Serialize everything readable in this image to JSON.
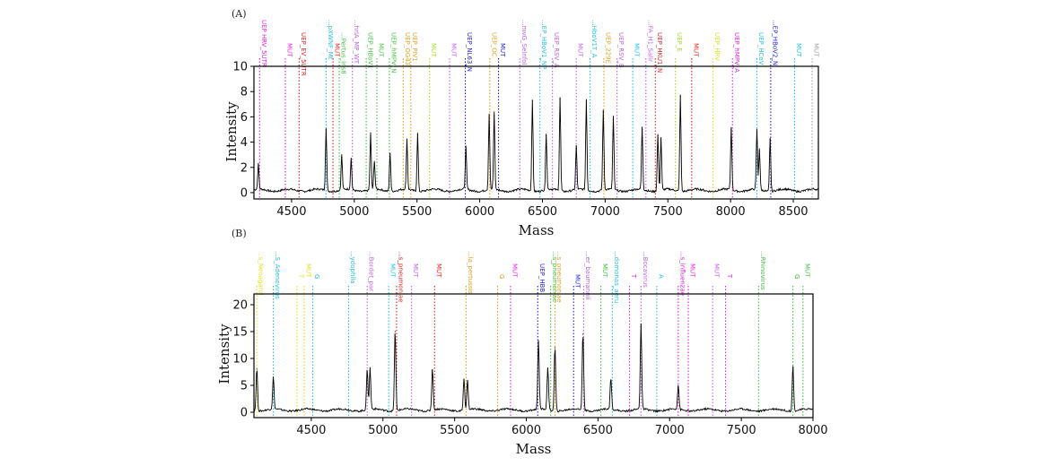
{
  "chart_data": [
    {
      "type": "line",
      "panel_tag": "(A)",
      "xlabel": "Mass",
      "ylabel": "Intensity",
      "xlim": [
        4200,
        8700
      ],
      "ylim": [
        -0.5,
        10
      ],
      "xticks": [
        4500,
        5000,
        5500,
        6000,
        6500,
        7000,
        7500,
        8000,
        8500
      ],
      "yticks": [
        0,
        2,
        4,
        6,
        8,
        10
      ],
      "line_color": "#000000",
      "peaks": [
        {
          "mass": 4235,
          "intensity": 2.0
        },
        {
          "mass": 4775,
          "intensity": 5.0
        },
        {
          "mass": 4900,
          "intensity": 2.8
        },
        {
          "mass": 4975,
          "intensity": 2.5
        },
        {
          "mass": 5130,
          "intensity": 4.5
        },
        {
          "mass": 5160,
          "intensity": 2.3
        },
        {
          "mass": 5285,
          "intensity": 3.1
        },
        {
          "mass": 5420,
          "intensity": 4.0
        },
        {
          "mass": 5505,
          "intensity": 4.6
        },
        {
          "mass": 5890,
          "intensity": 3.4
        },
        {
          "mass": 6075,
          "intensity": 6.0
        },
        {
          "mass": 6115,
          "intensity": 6.1
        },
        {
          "mass": 6420,
          "intensity": 7.3
        },
        {
          "mass": 6530,
          "intensity": 4.5
        },
        {
          "mass": 6640,
          "intensity": 7.4
        },
        {
          "mass": 6770,
          "intensity": 3.5
        },
        {
          "mass": 6850,
          "intensity": 7.2
        },
        {
          "mass": 6985,
          "intensity": 6.4
        },
        {
          "mass": 7065,
          "intensity": 5.8
        },
        {
          "mass": 7295,
          "intensity": 5.0
        },
        {
          "mass": 7420,
          "intensity": 4.5
        },
        {
          "mass": 7445,
          "intensity": 4.2
        },
        {
          "mass": 7600,
          "intensity": 7.6
        },
        {
          "mass": 8005,
          "intensity": 5.0
        },
        {
          "mass": 8210,
          "intensity": 4.8
        },
        {
          "mass": 8230,
          "intensity": 3.3
        },
        {
          "mass": 8315,
          "intensity": 4.2
        }
      ],
      "markers": [
        {
          "mass": 4245,
          "label": "UEP HRV_5UTR",
          "color": "#e020e0",
          "tier": 0
        },
        {
          "mass": 4450,
          "label": "MUT",
          "color": "#e020e0",
          "tier": 2
        },
        {
          "mass": 4560,
          "label": "UEP_EV_5UTR",
          "color": "#e02020",
          "tier": 1
        },
        {
          "mass": 4775,
          "label": "...pXWNF_Mt",
          "color": "#20c0e0",
          "tier": 0
        },
        {
          "mass": 4830,
          "label": "MUT",
          "color": "#e02020",
          "tier": 2
        },
        {
          "mass": 4880,
          "label": "...Pertus_Ins8",
          "color": "#40c040",
          "tier": 1
        },
        {
          "mass": 4985,
          "label": "...hrlA_MP_WT",
          "color": "#c060e0",
          "tier": 0
        },
        {
          "mass": 5095,
          "label": "UEP_HBoV1",
          "color": "#40c040",
          "tier": 1
        },
        {
          "mass": 5180,
          "label": "MUT",
          "color": "#40c040",
          "tier": 2
        },
        {
          "mass": 5280,
          "label": "UEP_hMPV_N",
          "color": "#40c040",
          "tier": 1
        },
        {
          "mass": 5390,
          "label": "UEP_OG43",
          "color": "#e0a020",
          "tier": 1
        },
        {
          "mass": 5450,
          "label": "UEP_PIV1",
          "color": "#e0a020",
          "tier": 1
        },
        {
          "mass": 5600,
          "label": "MUT",
          "color": "#a0e020",
          "tier": 2
        },
        {
          "mass": 5760,
          "label": "MUT",
          "color": "#c060e0",
          "tier": 2
        },
        {
          "mass": 5885,
          "label": "UEP_NL63_N",
          "color": "#2020d0",
          "tier": 1
        },
        {
          "mass": 6080,
          "label": "UEP_OC",
          "color": "#e0a020",
          "tier": 1
        },
        {
          "mass": 6150,
          "label": "MUT",
          "color": "#2020d0",
          "tier": 2
        },
        {
          "mass": 6320,
          "label": "...mvG_Selnfol",
          "color": "#c060e0",
          "tier": 0
        },
        {
          "mass": 6480,
          "label": "...EP_HBoV1_NP",
          "color": "#20c0e0",
          "tier": 0
        },
        {
          "mass": 6580,
          "label": "UEP_RSV_A",
          "color": "#c060e0",
          "tier": 1
        },
        {
          "mass": 6770,
          "label": "MUT",
          "color": "#c060e0",
          "tier": 2
        },
        {
          "mass": 6880,
          "label": "...HboV1T_A",
          "color": "#20c0e0",
          "tier": 0
        },
        {
          "mass": 6990,
          "label": "UEP_229E",
          "color": "#e0a020",
          "tier": 1
        },
        {
          "mass": 7095,
          "label": "UEP_RSV_B",
          "color": "#c060e0",
          "tier": 1
        },
        {
          "mass": 7220,
          "label": "MUT",
          "color": "#20c0e0",
          "tier": 2
        },
        {
          "mass": 7325,
          "label": "...FA_H1_Salir",
          "color": "#c060e0",
          "tier": 0
        },
        {
          "mass": 7400,
          "label": "UEP_HKU1_N",
          "color": "#e02020",
          "tier": 1
        },
        {
          "mass": 7560,
          "label": "UEP_E",
          "color": "#a0e020",
          "tier": 1
        },
        {
          "mass": 7690,
          "label": "MUT",
          "color": "#e02020",
          "tier": 2
        },
        {
          "mass": 7860,
          "label": "UEP_HRV",
          "color": "#e0e020",
          "tier": 1
        },
        {
          "mass": 8015,
          "label": "UEP_hMPV_A",
          "color": "#e020e0",
          "tier": 1
        },
        {
          "mass": 8210,
          "label": "UEP_HCoV",
          "color": "#20c0e0",
          "tier": 1
        },
        {
          "mass": 8320,
          "label": "...EP_HBoV2_N",
          "color": "#2020d0",
          "tier": 0
        },
        {
          "mass": 8510,
          "label": "MUT",
          "color": "#20c0e0",
          "tier": 2
        },
        {
          "mass": 8650,
          "label": "MUT",
          "color": "#a0a0a0",
          "tier": 2
        }
      ]
    },
    {
      "type": "line",
      "panel_tag": "(B)",
      "xlabel": "Mass",
      "ylabel": "Intensity",
      "xlim": [
        4100,
        8000
      ],
      "ylim": [
        -1,
        22
      ],
      "xticks": [
        4500,
        5000,
        5500,
        6000,
        6500,
        7000,
        7500,
        8000
      ],
      "yticks": [
        0,
        5,
        10,
        15,
        20
      ],
      "line_color": "#000000",
      "peaks": [
        {
          "mass": 4120,
          "intensity": 8.0
        },
        {
          "mass": 4235,
          "intensity": 6.0
        },
        {
          "mass": 4890,
          "intensity": 7.5
        },
        {
          "mass": 4910,
          "intensity": 7.8
        },
        {
          "mass": 5085,
          "intensity": 15.0
        },
        {
          "mass": 5345,
          "intensity": 7.8
        },
        {
          "mass": 5565,
          "intensity": 6.0
        },
        {
          "mass": 5590,
          "intensity": 5.5
        },
        {
          "mass": 6085,
          "intensity": 13.0
        },
        {
          "mass": 6150,
          "intensity": 8.0
        },
        {
          "mass": 6200,
          "intensity": 12.0
        },
        {
          "mass": 6395,
          "intensity": 14.5
        },
        {
          "mass": 6590,
          "intensity": 6.0
        },
        {
          "mass": 6800,
          "intensity": 16.0
        },
        {
          "mass": 7060,
          "intensity": 4.5
        },
        {
          "mass": 7860,
          "intensity": 8.5
        }
      ],
      "markers": [
        {
          "mass": 4120,
          "label": "...s_Neoagarol",
          "color": "#e0e020",
          "tier": 0
        },
        {
          "mass": 4235,
          "label": "...S_Adenovirus",
          "color": "#20c0e0",
          "tier": 0
        },
        {
          "mass": 4400,
          "label": "T",
          "color": "#e0e020",
          "tier": 2
        },
        {
          "mass": 4450,
          "label": "MUT",
          "color": "#e0e020",
          "tier": 1
        },
        {
          "mass": 4510,
          "label": "G",
          "color": "#20c0e0",
          "tier": 2
        },
        {
          "mass": 4760,
          "label": "...ydophila",
          "color": "#20c0e0",
          "tier": 0
        },
        {
          "mass": 4890,
          "label": "...Bordet_par",
          "color": "#c060e0",
          "tier": 0
        },
        {
          "mass": 5040,
          "label": "MUT",
          "color": "#20c0e0",
          "tier": 1
        },
        {
          "mass": 5095,
          "label": "...s_pneumoniae",
          "color": "#e02020",
          "tier": 0
        },
        {
          "mass": 5200,
          "label": "MUT",
          "color": "#c060e0",
          "tier": 1
        },
        {
          "mass": 5360,
          "label": "MUT",
          "color": "#e02020",
          "tier": 1
        },
        {
          "mass": 5580,
          "label": "...la_pertussis",
          "color": "#e0a020",
          "tier": 0
        },
        {
          "mass": 5800,
          "label": "G",
          "color": "#e0a020",
          "tier": 2
        },
        {
          "mass": 5890,
          "label": "MUT",
          "color": "#e020e0",
          "tier": 1
        },
        {
          "mass": 6080,
          "label": "UEP_HBB",
          "color": "#2020d0",
          "tier": 1
        },
        {
          "mass": 6170,
          "label": "...s_pneumoniae",
          "color": "#40c040",
          "tier": 0
        },
        {
          "mass": 6200,
          "label": "...s_pneumoniae",
          "color": "#e0a020",
          "tier": 0
        },
        {
          "mass": 6330,
          "label": "MUT",
          "color": "#2020d0",
          "tier": 2
        },
        {
          "mass": 6400,
          "label": "...er_baumannii",
          "color": "#c060e0",
          "tier": 0
        },
        {
          "mass": 6520,
          "label": "MUT",
          "color": "#40c040",
          "tier": 1
        },
        {
          "mass": 6600,
          "label": "...domonas_aeru",
          "color": "#20c0e0",
          "tier": 0
        },
        {
          "mass": 6720,
          "label": "T",
          "color": "#e020e0",
          "tier": 2
        },
        {
          "mass": 6800,
          "label": "...Bocavirus",
          "color": "#c060e0",
          "tier": 0
        },
        {
          "mass": 6910,
          "label": "A",
          "color": "#20c0e0",
          "tier": 2
        },
        {
          "mass": 7060,
          "label": "...s_influenzae",
          "color": "#e020e0",
          "tier": 0
        },
        {
          "mass": 7130,
          "label": "MUT",
          "color": "#e020e0",
          "tier": 1
        },
        {
          "mass": 7300,
          "label": "MUT",
          "color": "#c060e0",
          "tier": 1
        },
        {
          "mass": 7390,
          "label": "T",
          "color": "#e020e0",
          "tier": 2
        },
        {
          "mass": 7620,
          "label": "...Rhinovirus",
          "color": "#40c040",
          "tier": 0
        },
        {
          "mass": 7860,
          "label": "G",
          "color": "#40c040",
          "tier": 2
        },
        {
          "mass": 7930,
          "label": "MUT",
          "color": "#40c040",
          "tier": 1
        }
      ]
    }
  ]
}
